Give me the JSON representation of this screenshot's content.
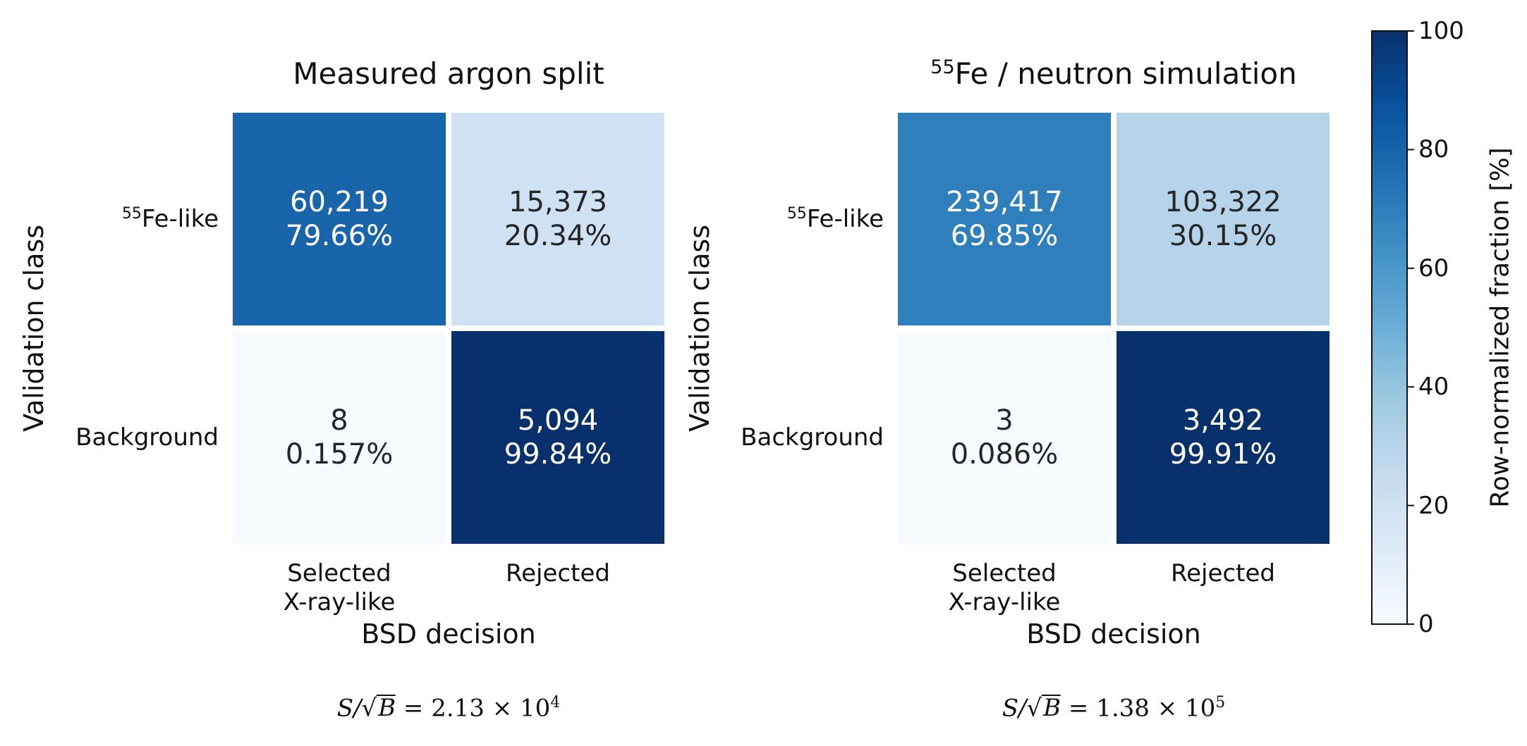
{
  "chart_data": [
    {
      "type": "heatmap",
      "title_sup": "",
      "title": "Measured argon split",
      "xlabel": "BSD decision",
      "ylabel": "Validation class",
      "row_labels": [
        {
          "sup": "55",
          "text": "Fe-like"
        },
        {
          "sup": "",
          "text": "Background"
        }
      ],
      "col_labels": [
        "Selected\nX-ray-like",
        "Rejected"
      ],
      "counts": [
        [
          "60,219",
          "15,373"
        ],
        [
          "8",
          "5,094"
        ]
      ],
      "percents": [
        [
          "79.66%",
          "20.34%"
        ],
        [
          "0.157%",
          "99.84%"
        ]
      ],
      "values": [
        [
          79.66,
          20.34
        ],
        [
          0.157,
          99.84
        ]
      ],
      "metric": {
        "lhs": "S/",
        "sqrt": "B",
        "rhs": " = 2.13 × 10",
        "exp": "4"
      }
    },
    {
      "type": "heatmap",
      "title_sup": "55",
      "title": "Fe / neutron simulation",
      "xlabel": "BSD decision",
      "ylabel": "Validation class",
      "row_labels": [
        {
          "sup": "55",
          "text": "Fe-like"
        },
        {
          "sup": "",
          "text": "Background"
        }
      ],
      "col_labels": [
        "Selected\nX-ray-like",
        "Rejected"
      ],
      "counts": [
        [
          "239,417",
          "103,322"
        ],
        [
          "3",
          "3,492"
        ]
      ],
      "percents": [
        [
          "69.85%",
          "30.15%"
        ],
        [
          "0.086%",
          "99.91%"
        ]
      ],
      "values": [
        [
          69.85,
          30.15
        ],
        [
          0.086,
          99.91
        ]
      ],
      "metric": {
        "lhs": "S/",
        "sqrt": "B",
        "rhs": " = 1.38 × 10",
        "exp": "5"
      }
    }
  ],
  "colorbar": {
    "label": "Row-normalized fraction [%]",
    "range": [
      0,
      100
    ],
    "ticks": [
      "0",
      "20",
      "40",
      "60",
      "80",
      "100"
    ],
    "colors": [
      "#f7fbff",
      "#deebf7",
      "#c6dbef",
      "#9ecae1",
      "#6baed6",
      "#4292c6",
      "#2171b5",
      "#08519c",
      "#08306b"
    ]
  }
}
